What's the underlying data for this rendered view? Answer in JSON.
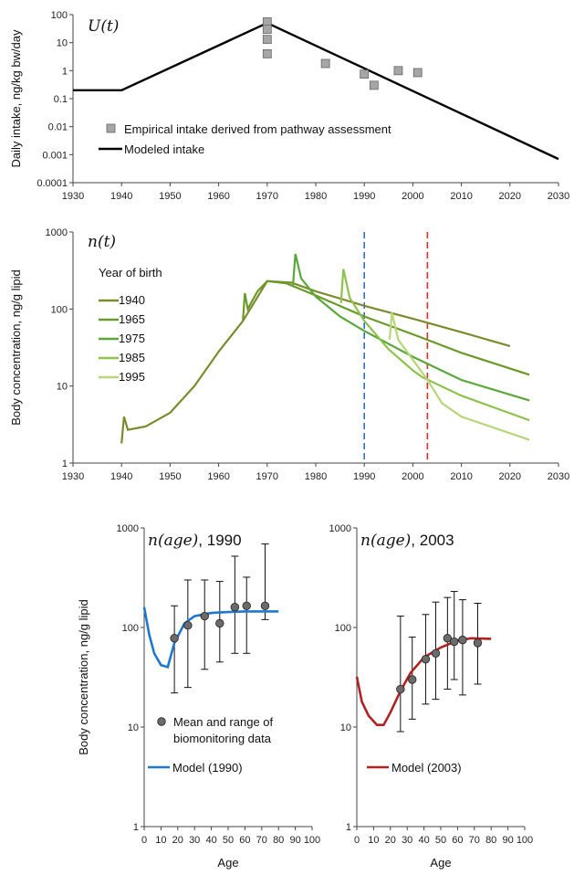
{
  "chart_data": [
    {
      "id": "U",
      "type": "line",
      "title": "U(t)",
      "ylabel": "Daily intake, ng/kg bw/day",
      "xlabel": "",
      "xlim": [
        1930,
        2030
      ],
      "ylim": [
        0.0001,
        100
      ],
      "yscale": "log",
      "xticks": [
        "1930",
        "1940",
        "1950",
        "1960",
        "1970",
        "1980",
        "1990",
        "2000",
        "2010",
        "2020",
        "2030"
      ],
      "yticks": [
        "0.0001",
        "0.001",
        "0.01",
        "0.1",
        "1",
        "10",
        "100"
      ],
      "legend_position": "lower-left",
      "series": [
        {
          "name": "Modeled intake",
          "kind": "line",
          "color": "#000000",
          "points": [
            [
              1930,
              0.2
            ],
            [
              1940,
              0.2
            ],
            [
              1970,
              50
            ],
            [
              2030,
              0.0007
            ]
          ]
        },
        {
          "name": "Empirical intake derived from pathway assessment",
          "kind": "square",
          "color": "#a6a6a6",
          "points": [
            [
              1970,
              55
            ],
            [
              1970,
              30
            ],
            [
              1970,
              13
            ],
            [
              1970,
              4
            ],
            [
              1982,
              1.8
            ],
            [
              1990,
              0.75
            ],
            [
              1992,
              0.3
            ],
            [
              1997,
              1.0
            ],
            [
              2001,
              0.85
            ]
          ]
        }
      ]
    },
    {
      "id": "N",
      "type": "line",
      "title": "n(t)",
      "ylabel": "Body concentration, ng/g lipid",
      "xlabel": "",
      "xlim": [
        1930,
        2030
      ],
      "ylim": [
        1,
        1000
      ],
      "yscale": "log",
      "xticks": [
        "1930",
        "1940",
        "1950",
        "1960",
        "1970",
        "1980",
        "1990",
        "2000",
        "2010",
        "2020",
        "2030"
      ],
      "yticks": [
        "1",
        "10",
        "100",
        "1000"
      ],
      "legend_title": "Year of birth",
      "legend_position": "upper-left",
      "vlines": [
        {
          "x": 1990,
          "color": "#2f6fd0"
        },
        {
          "x": 2003,
          "color": "#e0302a"
        }
      ],
      "series": [
        {
          "name": "1940",
          "color": "#7b8c2e",
          "points": [
            [
              1940,
              1.8
            ],
            [
              1940.5,
              4
            ],
            [
              1941.3,
              2.7
            ],
            [
              1945,
              3.0
            ],
            [
              1950,
              4.5
            ],
            [
              1955,
              10
            ],
            [
              1960,
              28
            ],
            [
              1965,
              70
            ],
            [
              1970,
              230
            ],
            [
              1975,
              220
            ],
            [
              1980,
              170
            ],
            [
              1990,
              110
            ],
            [
              2000,
              75
            ],
            [
              2010,
              50
            ],
            [
              2020,
              33
            ]
          ]
        },
        {
          "name": "1965",
          "color": "#6a9a2a",
          "points": [
            [
              1965,
              70
            ],
            [
              1965.4,
              160
            ],
            [
              1966,
              100
            ],
            [
              1968,
              170
            ],
            [
              1970,
              230
            ],
            [
              1974,
              215
            ],
            [
              1980,
              150
            ],
            [
              1990,
              80
            ],
            [
              2000,
              47
            ],
            [
              2010,
              27
            ],
            [
              2024,
              14
            ]
          ]
        },
        {
          "name": "1975",
          "color": "#5aa83a",
          "points": [
            [
              1975.3,
              200
            ],
            [
              1975.8,
              520
            ],
            [
              1977,
              250
            ],
            [
              1980,
              145
            ],
            [
              1985,
              80
            ],
            [
              1990,
              52
            ],
            [
              2000,
              24
            ],
            [
              2010,
              12
            ],
            [
              2024,
              6.5
            ]
          ]
        },
        {
          "name": "1985",
          "color": "#8fc24c",
          "points": [
            [
              1985.2,
              120
            ],
            [
              1985.7,
              330
            ],
            [
              1987,
              140
            ],
            [
              1990,
              70
            ],
            [
              1995,
              30
            ],
            [
              2000,
              16
            ],
            [
              2002,
              13
            ],
            [
              2010,
              7.5
            ],
            [
              2024,
              3.6
            ]
          ]
        },
        {
          "name": "1995",
          "color": "#b5d77a",
          "points": [
            [
              1995.2,
              40
            ],
            [
              1995.7,
              90
            ],
            [
              1997,
              40
            ],
            [
              2000,
              22
            ],
            [
              2003,
              12
            ],
            [
              2006,
              6
            ],
            [
              2010,
              4
            ],
            [
              2024,
              2
            ]
          ]
        }
      ]
    },
    {
      "id": "A1990",
      "type": "line",
      "title_italic": "n(age)",
      "title_plain": ", 1990",
      "ylabel": "Body concentration, ng/g lipid",
      "xlabel": "Age",
      "xlim": [
        0,
        100
      ],
      "ylim": [
        1,
        1000
      ],
      "yscale": "log",
      "xticks": [
        "0",
        "10",
        "20",
        "30",
        "40",
        "50",
        "60",
        "70",
        "80",
        "90",
        "100"
      ],
      "yticks": [
        "1",
        "10",
        "100",
        "1000"
      ],
      "legend_position": "lower-left",
      "model": {
        "name": "Model (1990)",
        "color": "#1f77d0",
        "points": [
          [
            0,
            160
          ],
          [
            3,
            85
          ],
          [
            6,
            55
          ],
          [
            10,
            42
          ],
          [
            14,
            40
          ],
          [
            18,
            70
          ],
          [
            24,
            110
          ],
          [
            30,
            130
          ],
          [
            40,
            140
          ],
          [
            50,
            143
          ],
          [
            60,
            145
          ],
          [
            70,
            145
          ],
          [
            80,
            145
          ]
        ]
      },
      "data": {
        "name": "Mean and range of biomonitoring data",
        "points": [
          {
            "x": 18,
            "mean": 78,
            "lo": 22,
            "hi": 165
          },
          {
            "x": 26,
            "mean": 105,
            "lo": 25,
            "hi": 300
          },
          {
            "x": 36,
            "mean": 130,
            "lo": 38,
            "hi": 300
          },
          {
            "x": 45,
            "mean": 110,
            "lo": 45,
            "hi": 290
          },
          {
            "x": 54,
            "mean": 160,
            "lo": 55,
            "hi": 520
          },
          {
            "x": 61,
            "mean": 165,
            "lo": 55,
            "hi": 320
          },
          {
            "x": 72,
            "mean": 165,
            "lo": 120,
            "hi": 690
          }
        ]
      }
    },
    {
      "id": "A2003",
      "type": "line",
      "title_italic": "n(age)",
      "title_plain": ", 2003",
      "ylabel": "",
      "xlabel": "Age",
      "xlim": [
        0,
        100
      ],
      "ylim": [
        1,
        1000
      ],
      "yscale": "log",
      "xticks": [
        "0",
        "10",
        "20",
        "30",
        "40",
        "50",
        "60",
        "70",
        "80",
        "90",
        "100"
      ],
      "yticks": [
        "1",
        "10",
        "100",
        "1000"
      ],
      "legend_position": "lower-left",
      "model": {
        "name": "Model (2003)",
        "color": "#b22222",
        "points": [
          [
            0,
            32
          ],
          [
            3,
            18
          ],
          [
            7,
            13
          ],
          [
            12,
            10.5
          ],
          [
            16,
            10.5
          ],
          [
            20,
            14
          ],
          [
            26,
            23
          ],
          [
            32,
            35
          ],
          [
            40,
            50
          ],
          [
            50,
            63
          ],
          [
            60,
            74
          ],
          [
            68,
            78
          ],
          [
            80,
            77
          ]
        ]
      },
      "data": {
        "name": "",
        "points": [
          {
            "x": 26,
            "mean": 24,
            "lo": 9,
            "hi": 130
          },
          {
            "x": 33,
            "mean": 30,
            "lo": 12,
            "hi": 80
          },
          {
            "x": 41,
            "mean": 48,
            "lo": 17,
            "hi": 135
          },
          {
            "x": 47,
            "mean": 55,
            "lo": 19,
            "hi": 180
          },
          {
            "x": 54,
            "mean": 78,
            "lo": 24,
            "hi": 200
          },
          {
            "x": 58,
            "mean": 72,
            "lo": 30,
            "hi": 230
          },
          {
            "x": 63,
            "mean": 75,
            "lo": 21,
            "hi": 190
          },
          {
            "x": 72,
            "mean": 70,
            "lo": 27,
            "hi": 175
          }
        ]
      }
    }
  ]
}
